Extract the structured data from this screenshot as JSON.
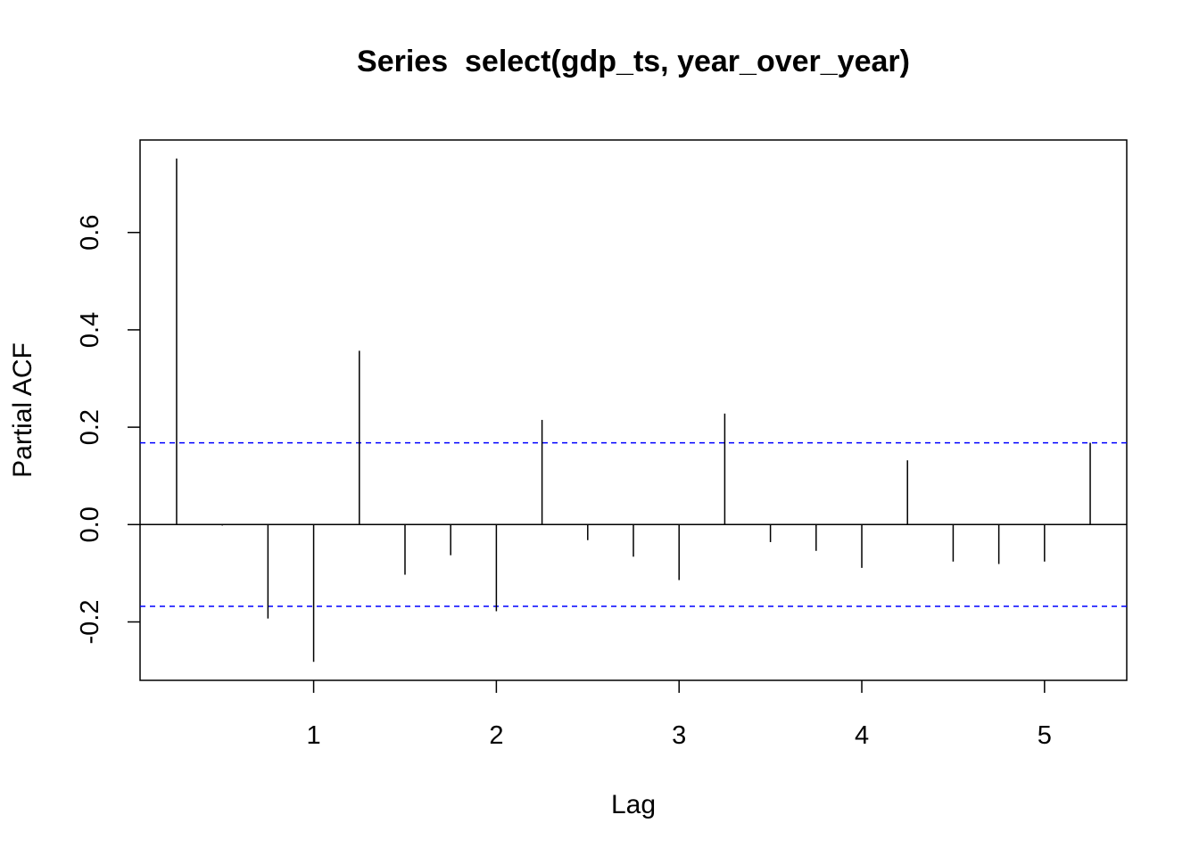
{
  "chart_data": {
    "type": "bar",
    "title": "Series  select(gdp_ts, year_over_year)",
    "xlabel": "Lag",
    "ylabel": "Partial ACF",
    "xlim": [
      0.05,
      5.45
    ],
    "ylim": [
      -0.32,
      0.79
    ],
    "x_ticks": [
      1,
      2,
      3,
      4,
      5
    ],
    "y_ticks": [
      -0.2,
      0.0,
      0.2,
      0.4,
      0.6
    ],
    "y_tick_labels": [
      "-0.2",
      "0.0",
      "0.2",
      "0.4",
      "0.6"
    ],
    "lags": [
      0.25,
      0.5,
      0.75,
      1.0,
      1.25,
      1.5,
      1.75,
      2.0,
      2.25,
      2.5,
      2.75,
      3.0,
      3.25,
      3.5,
      3.75,
      4.0,
      4.25,
      4.5,
      4.75,
      5.0,
      5.25
    ],
    "values": [
      0.752,
      -0.002,
      -0.193,
      -0.282,
      0.357,
      -0.103,
      -0.063,
      -0.178,
      0.215,
      -0.032,
      -0.066,
      -0.114,
      0.228,
      -0.036,
      -0.054,
      -0.089,
      0.132,
      -0.076,
      -0.081,
      -0.076,
      0.168
    ],
    "confidence_bound": 0.168,
    "bound_color": "#0000ff",
    "line_color": "#000000"
  }
}
